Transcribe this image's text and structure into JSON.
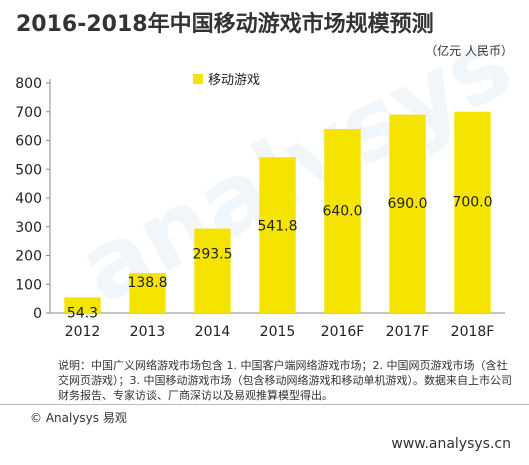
{
  "header": {
    "title": "2016-2018年中国移动游戏市场规模预测",
    "unit": "（亿元 人民币）"
  },
  "chart_data": {
    "type": "bar",
    "categories": [
      "2012",
      "2013",
      "2014",
      "2015",
      "2016F",
      "2017F",
      "2018F"
    ],
    "series": [
      {
        "name": "移动游戏",
        "values": [
          54.3,
          138.8,
          293.5,
          541.8,
          640.0,
          690.0,
          700.0
        ]
      }
    ],
    "data_labels": [
      "54.3",
      "138.8",
      "293.5",
      "541.8",
      "640.0",
      "690.0",
      "700.0"
    ],
    "ylim": [
      0,
      800
    ],
    "yticks": [
      0,
      100,
      200,
      300,
      400,
      500,
      600,
      700,
      800
    ],
    "xlabel": "",
    "ylabel": "",
    "legend_position": "top-left",
    "grid": false,
    "bar_color": "#f5e400"
  },
  "watermark": "analysys",
  "note": "说明：中国广义网络游戏市场包含 1. 中国客户端网络游戏市场；2. 中国网页游戏市场（含社交网页游戏）；3. 中国移动游戏市场（包含移动网络游戏和移动单机游戏）。数据来自上市公司财务报告、专家访谈、厂商深访以及易观推算模型得出。",
  "footer": {
    "brand": "© Analysys 易观",
    "website": "www.analysys.cn"
  }
}
